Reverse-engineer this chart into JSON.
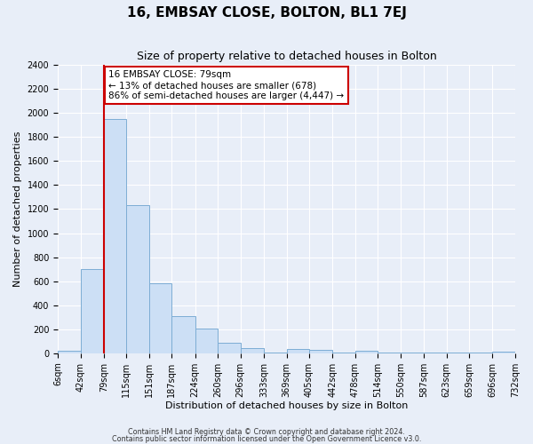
{
  "title": "16, EMBSAY CLOSE, BOLTON, BL1 7EJ",
  "subtitle": "Size of property relative to detached houses in Bolton",
  "xlabel": "Distribution of detached houses by size in Bolton",
  "ylabel": "Number of detached properties",
  "bar_color": "#ccdff5",
  "bar_edge_color": "#7dadd4",
  "plot_bg_color": "#e8eef8",
  "fig_bg_color": "#e8eef8",
  "grid_color": "#ffffff",
  "red_line_x": 79,
  "annotation_line1": "16 EMBSAY CLOSE: 79sqm",
  "annotation_line2": "← 13% of detached houses are smaller (678)",
  "annotation_line3": "86% of semi-detached houses are larger (4,447) →",
  "footnote1": "Contains HM Land Registry data © Crown copyright and database right 2024.",
  "footnote2": "Contains public sector information licensed under the Open Government Licence v3.0.",
  "bin_edges": [
    6,
    42,
    79,
    115,
    151,
    187,
    224,
    260,
    296,
    333,
    369,
    405,
    442,
    478,
    514,
    550,
    587,
    623,
    659,
    696,
    732
  ],
  "counts": [
    20,
    700,
    1950,
    1230,
    580,
    310,
    205,
    85,
    45,
    5,
    35,
    25,
    5,
    20,
    5,
    5,
    5,
    5,
    5,
    10
  ],
  "ylim": [
    0,
    2400
  ],
  "yticks": [
    0,
    200,
    400,
    600,
    800,
    1000,
    1200,
    1400,
    1600,
    1800,
    2000,
    2200,
    2400
  ],
  "title_fontsize": 11,
  "subtitle_fontsize": 9,
  "axis_label_fontsize": 8,
  "tick_fontsize": 7
}
